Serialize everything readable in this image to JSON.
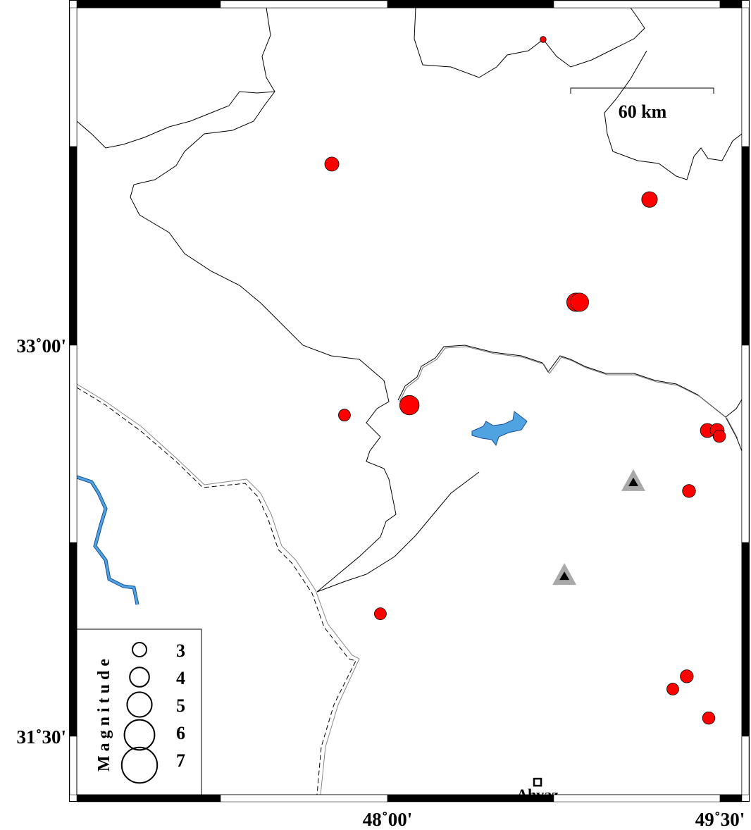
{
  "map": {
    "extent": {
      "lon": [
        47.0,
        49.6
      ],
      "lat": [
        31.4,
        34.2
      ]
    },
    "axis_labels": {
      "x": [
        {
          "lon": 48.0,
          "label": "48˚00'"
        },
        {
          "lon": 49.5,
          "label": "49˚30'"
        }
      ],
      "y": [
        {
          "lat": 33.0,
          "label": "33˚00'"
        },
        {
          "lat": 31.5,
          "label": "31˚30'"
        }
      ]
    },
    "scale_bar": {
      "label": "60 km"
    },
    "colors": {
      "event": "#ff0000",
      "water": "#4fa3e0",
      "station_outer": "#a9a9a9",
      "station_inner": "#000000"
    },
    "events": [
      {
        "lon": 47.749,
        "lat": 33.695,
        "mag": 3.0
      },
      {
        "lon": 48.702,
        "lat": 34.173,
        "mag": 1.5
      },
      {
        "lon": 49.182,
        "lat": 33.559,
        "mag": 3.3
      },
      {
        "lon": 48.85,
        "lat": 33.165,
        "mag": 3.8
      },
      {
        "lon": 48.866,
        "lat": 33.165,
        "mag": 3.8
      },
      {
        "lon": 48.099,
        "lat": 32.77,
        "mag": 4.0
      },
      {
        "lon": 47.806,
        "lat": 32.732,
        "mag": 2.6
      },
      {
        "lon": 49.443,
        "lat": 32.673,
        "mag": 3.0
      },
      {
        "lon": 49.487,
        "lat": 32.673,
        "mag": 3.0
      },
      {
        "lon": 49.497,
        "lat": 32.651,
        "mag": 2.7
      },
      {
        "lon": 49.36,
        "lat": 32.441,
        "mag": 2.8
      },
      {
        "lon": 47.968,
        "lat": 31.97,
        "mag": 2.6
      },
      {
        "lon": 49.35,
        "lat": 31.73,
        "mag": 2.8
      },
      {
        "lon": 49.287,
        "lat": 31.681,
        "mag": 2.6
      },
      {
        "lon": 49.449,
        "lat": 31.57,
        "mag": 2.7
      }
    ],
    "stations": [
      {
        "lon": 49.109,
        "lat": 32.476
      },
      {
        "lon": 48.798,
        "lat": 32.116
      }
    ],
    "cities": [
      {
        "name": "Ahvaz",
        "lon": 48.677,
        "lat": 31.324
      }
    ],
    "legend": {
      "title": "Magnitude",
      "magnitudes": [
        "3",
        "4",
        "5",
        "6",
        "7"
      ]
    }
  }
}
